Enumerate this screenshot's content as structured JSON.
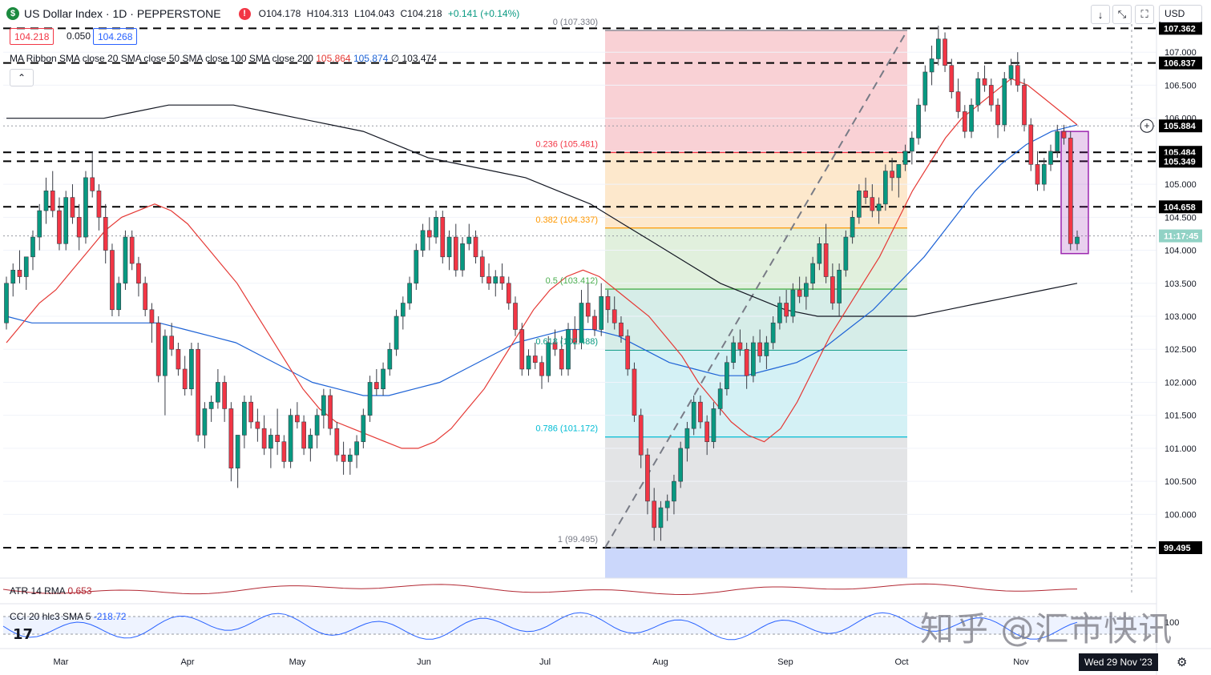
{
  "header": {
    "logo_char": "$",
    "title": "US Dollar Index · 1D · PEPPERSTONE",
    "alert_char": "!",
    "open": "O104.178",
    "high": "H104.313",
    "low": "L104.043",
    "close": "C104.218",
    "change": "+0.141 (+0.14%)"
  },
  "price_boxes": {
    "sell": "104.218",
    "spread": "0.050",
    "buy": "104.268"
  },
  "ma_ribbon": {
    "label": "MA Ribbon SMA close 20 SMA close 50 SMA close 100 SMA close 200",
    "v20": "105.864",
    "v50": "105.874",
    "v100": "∅",
    "v200": "103.474"
  },
  "collapse_char": "⌃",
  "toolbar": {
    "down_arrow": "↓",
    "fullscreen": "⤡",
    "snapshot": "⛶",
    "currency": "USD"
  },
  "fib_labels": [
    "0 (107.330)",
    "0.236 (105.481)",
    "0.382 (104.337)",
    "0.5 (103.412)",
    "0.618 (102.488)",
    "0.786 (101.172)",
    "1 (99.495)"
  ],
  "price_axis_ticks": [
    "107.000",
    "106.500",
    "106.000",
    "105.000",
    "104.500",
    "104.000",
    "103.500",
    "103.000",
    "102.500",
    "102.000",
    "101.500",
    "101.000",
    "100.500",
    "100.000"
  ],
  "axis_badges": {
    "top": "107.362",
    "level_106": "106.837",
    "ma_now": "105.884",
    "level_105a": "105.484",
    "level_105b": "105.349",
    "level_104": "104.658",
    "countdown": "11:17:45",
    "bottom": "99.495"
  },
  "month_labels": [
    "Mar",
    "Apr",
    "May",
    "Jun",
    "Jul",
    "Aug",
    "Sep",
    "Oct",
    "Nov"
  ],
  "atr": {
    "label": "ATR 14 RMA",
    "value": "0.653"
  },
  "cci": {
    "label": "CCI 20 hlc3 SMA 5",
    "value": "-218.72"
  },
  "cci_axis": "100",
  "tv_logo": "17",
  "date_badge": "Wed 29 Nov '23",
  "watermark": "知乎 @汇市快讯",
  "colors": {
    "up": "#089981",
    "down": "#f23645",
    "sma20": "#e53935",
    "sma50": "#1e63d6",
    "sma200": "#131722",
    "fib_red": "#f23645",
    "fib_orange": "#ff9800",
    "fib_green": "#4caf50",
    "fib_teal": "#089981",
    "fib_cyan": "#00bcd4",
    "fib_gray": "#787b86",
    "highlight_box": "#9c27b0"
  },
  "chart_data": {
    "type": "candlestick",
    "instrument": "US Dollar Index",
    "interval": "1D",
    "ylim": [
      99.3,
      107.5
    ],
    "price_ticks": [
      100,
      100.5,
      101,
      101.5,
      102,
      102.5,
      103,
      103.5,
      104,
      104.5,
      105,
      105.5,
      106,
      106.5,
      107
    ],
    "horizontal_levels": [
      107.362,
      106.837,
      105.484,
      105.349,
      104.658,
      99.495
    ],
    "current_price": 104.218,
    "fib_retracement": {
      "high": 107.33,
      "low": 99.495,
      "levels": [
        {
          "ratio": 0,
          "price": 107.33
        },
        {
          "ratio": 0.236,
          "price": 105.481
        },
        {
          "ratio": 0.382,
          "price": 104.337
        },
        {
          "ratio": 0.5,
          "price": 103.412
        },
        {
          "ratio": 0.618,
          "price": 102.488
        },
        {
          "ratio": 0.786,
          "price": 101.172
        },
        {
          "ratio": 1,
          "price": 99.495
        }
      ]
    },
    "highlight": {
      "from_price": 103.95,
      "to_price": 105.8
    },
    "candles": [
      [
        102.9,
        103.6,
        102.8,
        103.5
      ],
      [
        103.5,
        103.8,
        103.3,
        103.7
      ],
      [
        103.7,
        104.0,
        103.5,
        103.6
      ],
      [
        103.6,
        103.9,
        103.4,
        103.9
      ],
      [
        103.9,
        104.3,
        103.7,
        104.2
      ],
      [
        104.2,
        104.7,
        104.0,
        104.6
      ],
      [
        104.6,
        105.1,
        104.4,
        104.9
      ],
      [
        104.9,
        105.2,
        104.5,
        104.6
      ],
      [
        104.6,
        104.8,
        104.0,
        104.1
      ],
      [
        104.1,
        104.9,
        104.0,
        104.8
      ],
      [
        104.8,
        105.0,
        104.4,
        104.5
      ],
      [
        104.5,
        104.7,
        104.0,
        104.2
      ],
      [
        104.2,
        105.2,
        104.1,
        105.1
      ],
      [
        105.1,
        105.5,
        104.8,
        104.9
      ],
      [
        104.9,
        105.0,
        104.3,
        104.5
      ],
      [
        104.5,
        104.7,
        103.8,
        104.0
      ],
      [
        104.0,
        104.1,
        103.0,
        103.1
      ],
      [
        103.1,
        103.6,
        103.0,
        103.5
      ],
      [
        103.5,
        104.3,
        103.4,
        104.2
      ],
      [
        104.2,
        104.3,
        103.7,
        103.8
      ],
      [
        103.8,
        103.9,
        103.3,
        103.5
      ],
      [
        103.5,
        103.6,
        103.0,
        103.1
      ],
      [
        103.1,
        103.2,
        102.6,
        102.9
      ],
      [
        102.9,
        103.0,
        102.0,
        102.1
      ],
      [
        102.1,
        102.8,
        101.5,
        102.7
      ],
      [
        102.7,
        102.9,
        102.4,
        102.5
      ],
      [
        102.5,
        102.6,
        102.1,
        102.2
      ],
      [
        102.2,
        102.4,
        101.8,
        101.9
      ],
      [
        101.9,
        102.6,
        101.8,
        102.5
      ],
      [
        102.5,
        102.6,
        101.1,
        101.2
      ],
      [
        101.2,
        101.7,
        101.0,
        101.6
      ],
      [
        101.6,
        101.8,
        101.4,
        101.7
      ],
      [
        101.7,
        102.2,
        101.6,
        102.0
      ],
      [
        102.0,
        102.1,
        101.4,
        101.6
      ],
      [
        101.6,
        101.7,
        100.5,
        100.7
      ],
      [
        100.7,
        101.2,
        100.4,
        101.2
      ],
      [
        101.2,
        101.8,
        101.0,
        101.7
      ],
      [
        101.7,
        101.8,
        101.3,
        101.4
      ],
      [
        101.4,
        101.6,
        101.1,
        101.3
      ],
      [
        101.3,
        101.5,
        100.9,
        101.0
      ],
      [
        101.0,
        101.3,
        100.7,
        101.2
      ],
      [
        101.2,
        101.6,
        100.9,
        101.1
      ],
      [
        101.1,
        101.2,
        100.7,
        100.8
      ],
      [
        100.8,
        101.6,
        100.7,
        101.5
      ],
      [
        101.5,
        101.7,
        101.3,
        101.4
      ],
      [
        101.4,
        101.5,
        100.9,
        101.0
      ],
      [
        101.0,
        101.3,
        100.8,
        101.2
      ],
      [
        101.2,
        101.6,
        101.0,
        101.5
      ],
      [
        101.5,
        101.9,
        101.3,
        101.8
      ],
      [
        101.8,
        101.9,
        101.2,
        101.3
      ],
      [
        101.3,
        101.4,
        100.8,
        100.9
      ],
      [
        100.9,
        101.1,
        100.6,
        100.8
      ],
      [
        100.8,
        101.0,
        100.6,
        100.9
      ],
      [
        100.9,
        101.2,
        100.7,
        101.1
      ],
      [
        101.1,
        101.6,
        101.0,
        101.5
      ],
      [
        101.5,
        102.1,
        101.4,
        102.0
      ],
      [
        102.0,
        102.2,
        101.8,
        101.9
      ],
      [
        101.9,
        102.3,
        101.8,
        102.2
      ],
      [
        102.2,
        102.6,
        102.1,
        102.5
      ],
      [
        102.5,
        103.1,
        102.4,
        103.0
      ],
      [
        103.0,
        103.3,
        102.8,
        103.2
      ],
      [
        103.2,
        103.6,
        103.1,
        103.5
      ],
      [
        103.5,
        104.1,
        103.4,
        104.0
      ],
      [
        104.0,
        104.4,
        103.9,
        104.3
      ],
      [
        104.3,
        104.5,
        104.0,
        104.2
      ],
      [
        104.2,
        104.6,
        104.1,
        104.5
      ],
      [
        104.5,
        104.6,
        103.8,
        103.9
      ],
      [
        103.9,
        104.3,
        103.7,
        104.2
      ],
      [
        104.2,
        104.4,
        103.6,
        103.7
      ],
      [
        103.7,
        104.2,
        103.6,
        104.1
      ],
      [
        104.1,
        104.4,
        104.0,
        104.2
      ],
      [
        104.2,
        104.3,
        103.8,
        103.9
      ],
      [
        103.9,
        104.0,
        103.5,
        103.6
      ],
      [
        103.6,
        103.8,
        103.4,
        103.5
      ],
      [
        103.5,
        103.7,
        103.3,
        103.6
      ],
      [
        103.6,
        103.8,
        103.4,
        103.5
      ],
      [
        103.5,
        103.6,
        103.1,
        103.2
      ],
      [
        103.2,
        103.3,
        102.7,
        102.8
      ],
      [
        102.8,
        102.9,
        102.1,
        102.2
      ],
      [
        102.2,
        102.5,
        102.1,
        102.4
      ],
      [
        102.4,
        102.6,
        102.2,
        102.3
      ],
      [
        102.3,
        102.4,
        101.9,
        102.1
      ],
      [
        102.1,
        102.7,
        102.0,
        102.6
      ],
      [
        102.6,
        102.8,
        102.4,
        102.5
      ],
      [
        102.5,
        102.7,
        102.1,
        102.2
      ],
      [
        102.2,
        102.9,
        102.1,
        102.8
      ],
      [
        102.8,
        103.0,
        102.5,
        102.6
      ],
      [
        102.6,
        103.4,
        102.5,
        103.2
      ],
      [
        103.2,
        103.5,
        102.9,
        103.0
      ],
      [
        103.0,
        103.1,
        102.7,
        102.8
      ],
      [
        102.8,
        103.5,
        102.7,
        103.3
      ],
      [
        103.3,
        103.4,
        102.9,
        103.1
      ],
      [
        103.1,
        103.3,
        102.8,
        102.9
      ],
      [
        102.9,
        103.0,
        102.6,
        102.7
      ],
      [
        102.7,
        102.8,
        102.1,
        102.2
      ],
      [
        102.2,
        102.3,
        101.4,
        101.5
      ],
      [
        101.5,
        101.6,
        100.7,
        100.9
      ],
      [
        100.9,
        101.0,
        100.0,
        100.2
      ],
      [
        100.2,
        100.4,
        99.6,
        99.8
      ],
      [
        99.8,
        100.2,
        99.6,
        100.1
      ],
      [
        100.1,
        100.3,
        99.9,
        100.2
      ],
      [
        100.2,
        100.6,
        100.0,
        100.5
      ],
      [
        100.5,
        101.1,
        100.4,
        101.0
      ],
      [
        101.0,
        101.4,
        100.8,
        101.3
      ],
      [
        101.3,
        101.8,
        101.2,
        101.7
      ],
      [
        101.7,
        101.8,
        101.3,
        101.4
      ],
      [
        101.4,
        101.5,
        100.9,
        101.1
      ],
      [
        101.1,
        101.7,
        101.0,
        101.6
      ],
      [
        101.6,
        102.0,
        101.5,
        101.9
      ],
      [
        101.9,
        102.4,
        101.8,
        102.3
      ],
      [
        102.3,
        102.7,
        102.2,
        102.6
      ],
      [
        102.6,
        102.8,
        102.4,
        102.5
      ],
      [
        102.5,
        102.6,
        101.9,
        102.1
      ],
      [
        102.1,
        102.7,
        102.0,
        102.6
      ],
      [
        102.6,
        102.8,
        102.3,
        102.4
      ],
      [
        102.4,
        102.7,
        102.2,
        102.6
      ],
      [
        102.6,
        103.0,
        102.5,
        102.9
      ],
      [
        102.9,
        103.3,
        102.8,
        103.2
      ],
      [
        103.2,
        103.4,
        102.9,
        103.0
      ],
      [
        103.0,
        103.5,
        102.9,
        103.4
      ],
      [
        103.4,
        103.6,
        103.2,
        103.3
      ],
      [
        103.3,
        103.6,
        103.1,
        103.5
      ],
      [
        103.5,
        103.9,
        103.4,
        103.8
      ],
      [
        103.8,
        104.2,
        103.7,
        104.1
      ],
      [
        104.1,
        104.4,
        103.5,
        103.6
      ],
      [
        103.6,
        103.8,
        103.1,
        103.2
      ],
      [
        103.2,
        103.8,
        103.0,
        103.7
      ],
      [
        103.7,
        104.3,
        103.6,
        104.2
      ],
      [
        104.2,
        104.6,
        104.1,
        104.5
      ],
      [
        104.5,
        105.0,
        104.4,
        104.9
      ],
      [
        104.9,
        105.1,
        104.7,
        104.8
      ],
      [
        104.8,
        105.0,
        104.5,
        104.6
      ],
      [
        104.6,
        104.8,
        104.4,
        104.7
      ],
      [
        104.7,
        105.3,
        104.6,
        105.2
      ],
      [
        105.2,
        105.4,
        104.9,
        105.1
      ],
      [
        105.1,
        105.3,
        104.8,
        105.3
      ],
      [
        105.3,
        105.6,
        105.2,
        105.5
      ],
      [
        105.5,
        105.8,
        105.3,
        105.7
      ],
      [
        105.7,
        106.3,
        105.6,
        106.2
      ],
      [
        106.2,
        106.8,
        106.1,
        106.7
      ],
      [
        106.7,
        107.1,
        106.5,
        106.9
      ],
      [
        106.9,
        107.4,
        106.8,
        107.2
      ],
      [
        107.2,
        107.3,
        106.7,
        106.8
      ],
      [
        106.8,
        106.9,
        106.3,
        106.4
      ],
      [
        106.4,
        106.6,
        106.0,
        106.1
      ],
      [
        106.1,
        106.2,
        105.7,
        105.8
      ],
      [
        105.8,
        106.3,
        105.7,
        106.2
      ],
      [
        106.2,
        106.7,
        106.1,
        106.6
      ],
      [
        106.6,
        106.8,
        106.4,
        106.5
      ],
      [
        106.5,
        106.6,
        106.1,
        106.2
      ],
      [
        106.2,
        106.3,
        105.7,
        105.9
      ],
      [
        105.9,
        106.7,
        105.8,
        106.6
      ],
      [
        106.6,
        106.9,
        106.5,
        106.8
      ],
      [
        106.8,
        107.0,
        106.4,
        106.5
      ],
      [
        106.5,
        106.6,
        105.8,
        105.9
      ],
      [
        105.9,
        106.0,
        105.2,
        105.3
      ],
      [
        105.3,
        105.5,
        104.9,
        105.0
      ],
      [
        105.0,
        105.4,
        104.9,
        105.3
      ],
      [
        105.3,
        105.6,
        105.2,
        105.5
      ],
      [
        105.5,
        105.9,
        105.4,
        105.8
      ],
      [
        105.8,
        105.9,
        105.6,
        105.7
      ],
      [
        105.7,
        105.8,
        104.0,
        104.1
      ],
      [
        104.1,
        104.3,
        104.0,
        104.2
      ]
    ],
    "sma20": [
      102.6,
      102.9,
      103.2,
      103.4,
      103.7,
      104.0,
      104.3,
      104.5,
      104.6,
      104.7,
      104.6,
      104.4,
      104.1,
      103.8,
      103.5,
      103.1,
      102.7,
      102.3,
      101.9,
      101.6,
      101.4,
      101.3,
      101.2,
      101.1,
      101.0,
      101.0,
      101.1,
      101.3,
      101.6,
      101.9,
      102.3,
      102.7,
      103.1,
      103.4,
      103.6,
      103.7,
      103.6,
      103.4,
      103.2,
      103.0,
      102.7,
      102.4,
      102.0,
      101.7,
      101.4,
      101.2,
      101.1,
      101.3,
      101.7,
      102.2,
      102.7,
      103.1,
      103.5,
      103.9,
      104.4,
      104.9,
      105.3,
      105.7,
      106.0,
      106.2,
      106.4,
      106.6,
      106.5,
      106.3,
      106.1,
      105.9
    ],
    "sma50": [
      103.0,
      102.9,
      102.9,
      102.9,
      102.9,
      102.9,
      102.9,
      102.8,
      102.7,
      102.6,
      102.4,
      102.2,
      102.0,
      101.9,
      101.8,
      101.8,
      101.9,
      102.0,
      102.2,
      102.4,
      102.6,
      102.7,
      102.8,
      102.8,
      102.7,
      102.5,
      102.3,
      102.2,
      102.1,
      102.1,
      102.2,
      102.3,
      102.5,
      102.8,
      103.1,
      103.5,
      103.9,
      104.4,
      104.9,
      105.3,
      105.6,
      105.8,
      105.9
    ],
    "sma200": [
      106.0,
      106.0,
      106.0,
      106.0,
      106.1,
      106.2,
      106.2,
      106.2,
      106.1,
      106.0,
      105.9,
      105.8,
      105.6,
      105.4,
      105.3,
      105.2,
      105.1,
      104.9,
      104.7,
      104.4,
      104.1,
      103.8,
      103.5,
      103.3,
      103.1,
      103.0,
      103.0,
      103.0,
      103.0,
      103.1,
      103.2,
      103.3,
      103.4,
      103.5
    ]
  }
}
